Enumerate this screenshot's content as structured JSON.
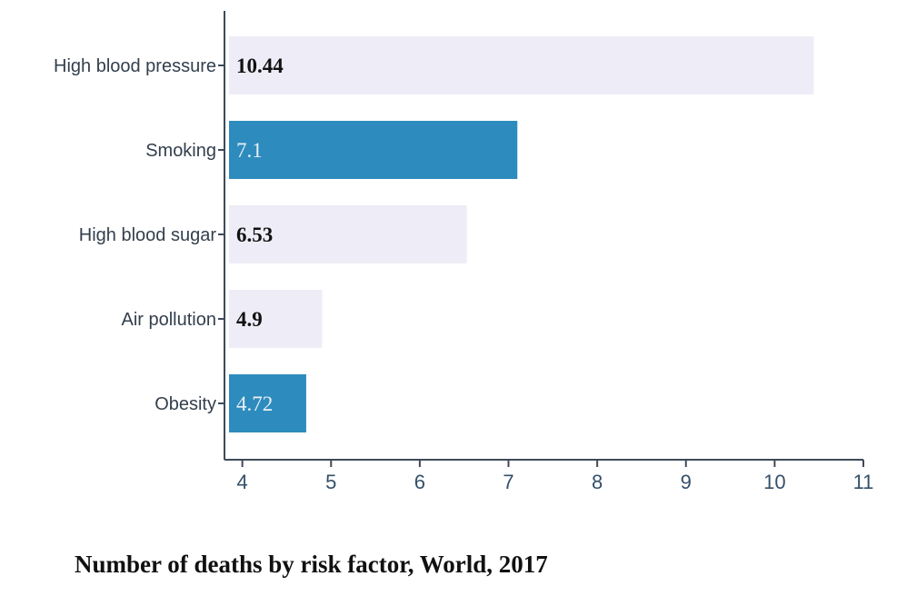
{
  "chart_data": {
    "type": "bar",
    "orientation": "horizontal",
    "title": "Number of deaths by risk factor, World, 2017",
    "categories": [
      "High blood pressure",
      "Smoking",
      "High blood sugar",
      "Air pollution",
      "Obesity"
    ],
    "values": [
      10.44,
      7.1,
      6.53,
      4.9,
      4.72
    ],
    "value_labels": [
      "10.44",
      "7.1",
      "6.53",
      "4.9",
      "4.72"
    ],
    "highlighted": [
      false,
      true,
      false,
      false,
      true
    ],
    "x_ticks": [
      4,
      5,
      6,
      7,
      8,
      9,
      10,
      11
    ],
    "x_tick_labels": [
      "4",
      "5",
      "6",
      "7",
      "8",
      "9",
      "10",
      "11"
    ],
    "xlim": [
      3.85,
      11
    ],
    "xlabel": "",
    "ylabel": "",
    "grid": false,
    "colors": {
      "bar": "#eeecf6",
      "bar_highlight": "#2e8bbd",
      "axis": "#3d4a5a",
      "category_text": "#333f4d",
      "tick_text": "#34506a",
      "value_text": "#111111",
      "value_text_highlight": "#e6f1f8"
    }
  }
}
